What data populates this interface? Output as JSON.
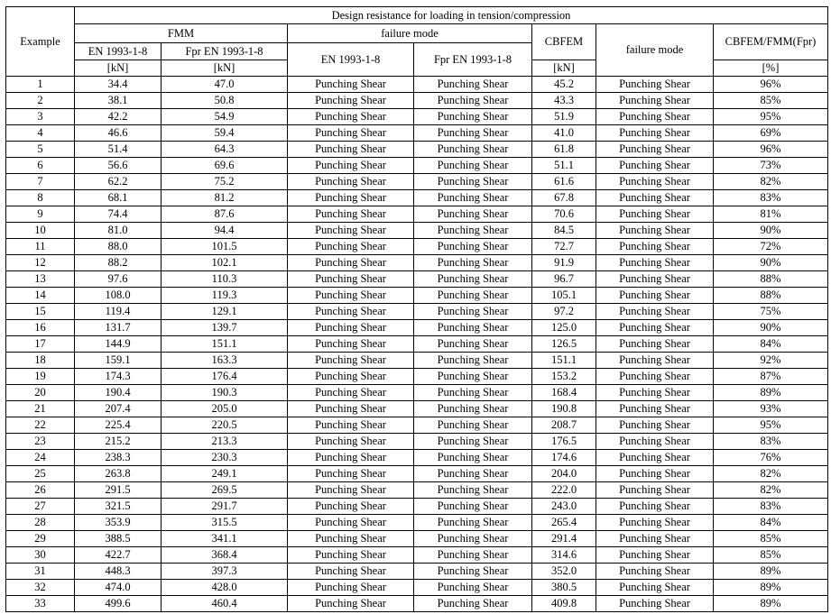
{
  "header": {
    "example": "Example",
    "group_title": "Design resistance for loading in tension/compression",
    "fmm": "FMM",
    "failure_mode": "failure mode",
    "en": "EN 1993-1-8",
    "fpr": "Fpr EN 1993-1-8",
    "cbfem": "CBFEM",
    "cbfem_failure_mode": "failure mode",
    "ratio": "CBFEM/FMM(Fpr)",
    "unit_kn": "[kN]",
    "unit_pct": "[%]"
  },
  "rows": [
    [
      "1",
      "34.4",
      "47.0",
      "Punching Shear",
      "Punching Shear",
      "45.2",
      "Punching Shear",
      "96%"
    ],
    [
      "2",
      "38.1",
      "50.8",
      "Punching Shear",
      "Punching Shear",
      "43.3",
      "Punching Shear",
      "85%"
    ],
    [
      "3",
      "42.2",
      "54.9",
      "Punching Shear",
      "Punching Shear",
      "51.9",
      "Punching Shear",
      "95%"
    ],
    [
      "4",
      "46.6",
      "59.4",
      "Punching Shear",
      "Punching Shear",
      "41.0",
      "Punching Shear",
      "69%"
    ],
    [
      "5",
      "51.4",
      "64.3",
      "Punching Shear",
      "Punching Shear",
      "61.8",
      "Punching Shear",
      "96%"
    ],
    [
      "6",
      "56.6",
      "69.6",
      "Punching Shear",
      "Punching Shear",
      "51.1",
      "Punching Shear",
      "73%"
    ],
    [
      "7",
      "62.2",
      "75.2",
      "Punching Shear",
      "Punching Shear",
      "61.6",
      "Punching Shear",
      "82%"
    ],
    [
      "8",
      "68.1",
      "81.2",
      "Punching Shear",
      "Punching Shear",
      "67.8",
      "Punching Shear",
      "83%"
    ],
    [
      "9",
      "74.4",
      "87.6",
      "Punching Shear",
      "Punching Shear",
      "70.6",
      "Punching Shear",
      "81%"
    ],
    [
      "10",
      "81.0",
      "94.4",
      "Punching Shear",
      "Punching Shear",
      "84.5",
      "Punching Shear",
      "90%"
    ],
    [
      "11",
      "88.0",
      "101.5",
      "Punching Shear",
      "Punching Shear",
      "72.7",
      "Punching Shear",
      "72%"
    ],
    [
      "12",
      "88.2",
      "102.1",
      "Punching Shear",
      "Punching Shear",
      "91.9",
      "Punching Shear",
      "90%"
    ],
    [
      "13",
      "97.6",
      "110.3",
      "Punching Shear",
      "Punching Shear",
      "96.7",
      "Punching Shear",
      "88%"
    ],
    [
      "14",
      "108.0",
      "119.3",
      "Punching Shear",
      "Punching Shear",
      "105.1",
      "Punching Shear",
      "88%"
    ],
    [
      "15",
      "119.4",
      "129.1",
      "Punching Shear",
      "Punching Shear",
      "97.2",
      "Punching Shear",
      "75%"
    ],
    [
      "16",
      "131.7",
      "139.7",
      "Punching Shear",
      "Punching Shear",
      "125.0",
      "Punching Shear",
      "90%"
    ],
    [
      "17",
      "144.9",
      "151.1",
      "Punching Shear",
      "Punching Shear",
      "126.5",
      "Punching Shear",
      "84%"
    ],
    [
      "18",
      "159.1",
      "163.3",
      "Punching Shear",
      "Punching Shear",
      "151.1",
      "Punching Shear",
      "92%"
    ],
    [
      "19",
      "174.3",
      "176.4",
      "Punching Shear",
      "Punching Shear",
      "153.2",
      "Punching Shear",
      "87%"
    ],
    [
      "20",
      "190.4",
      "190.3",
      "Punching Shear",
      "Punching Shear",
      "168.4",
      "Punching Shear",
      "89%"
    ],
    [
      "21",
      "207.4",
      "205.0",
      "Punching Shear",
      "Punching Shear",
      "190.8",
      "Punching Shear",
      "93%"
    ],
    [
      "22",
      "225.4",
      "220.5",
      "Punching Shear",
      "Punching Shear",
      "208.7",
      "Punching Shear",
      "95%"
    ],
    [
      "23",
      "215.2",
      "213.3",
      "Punching Shear",
      "Punching Shear",
      "176.5",
      "Punching Shear",
      "83%"
    ],
    [
      "24",
      "238.3",
      "230.3",
      "Punching Shear",
      "Punching Shear",
      "174.6",
      "Punching Shear",
      "76%"
    ],
    [
      "25",
      "263.8",
      "249.1",
      "Punching Shear",
      "Punching Shear",
      "204.0",
      "Punching Shear",
      "82%"
    ],
    [
      "26",
      "291.5",
      "269.5",
      "Punching Shear",
      "Punching Shear",
      "222.0",
      "Punching Shear",
      "82%"
    ],
    [
      "27",
      "321.5",
      "291.7",
      "Punching Shear",
      "Punching Shear",
      "243.0",
      "Punching Shear",
      "83%"
    ],
    [
      "28",
      "353.9",
      "315.5",
      "Punching Shear",
      "Punching Shear",
      "265.4",
      "Punching Shear",
      "84%"
    ],
    [
      "29",
      "388.5",
      "341.1",
      "Punching Shear",
      "Punching Shear",
      "291.4",
      "Punching Shear",
      "85%"
    ],
    [
      "30",
      "422.7",
      "368.4",
      "Punching Shear",
      "Punching Shear",
      "314.6",
      "Punching Shear",
      "85%"
    ],
    [
      "31",
      "448.3",
      "397.3",
      "Punching Shear",
      "Punching Shear",
      "352.0",
      "Punching Shear",
      "89%"
    ],
    [
      "32",
      "474.0",
      "428.0",
      "Punching Shear",
      "Punching Shear",
      "380.5",
      "Punching Shear",
      "89%"
    ],
    [
      "33",
      "499.6",
      "460.4",
      "Punching Shear",
      "Punching Shear",
      "409.8",
      "Punching Shear",
      "89%"
    ]
  ]
}
